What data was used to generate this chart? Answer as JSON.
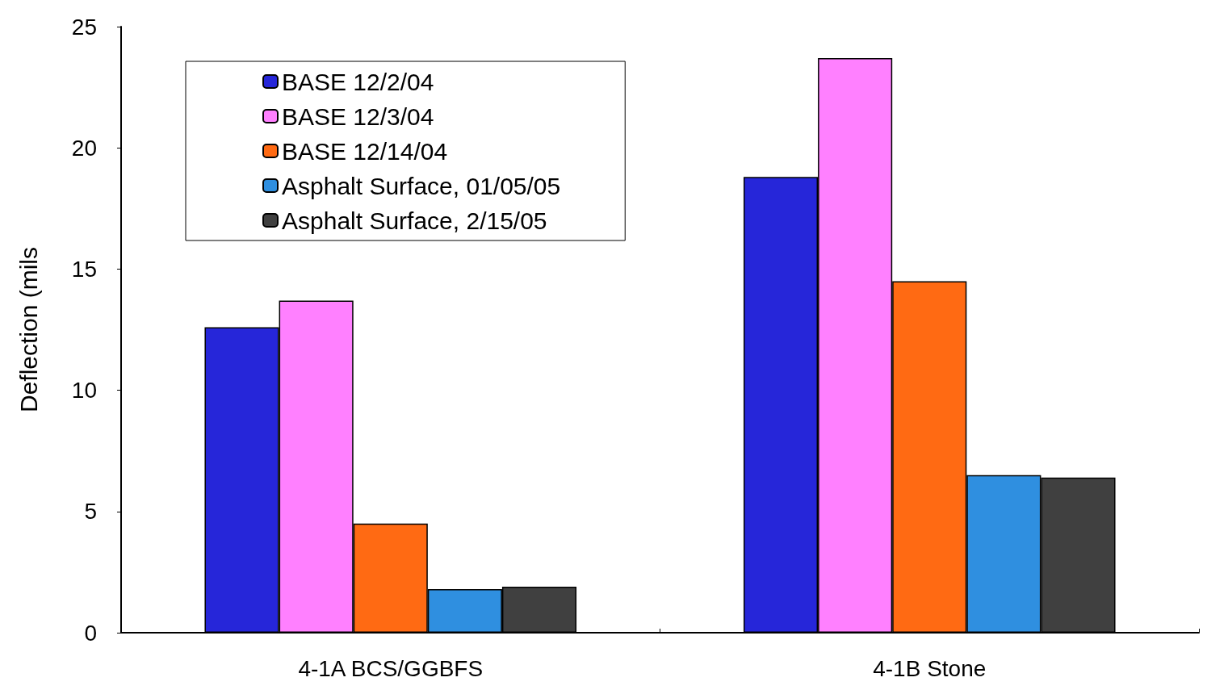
{
  "chart_data": {
    "type": "bar",
    "ylabel": "Deflection (mils",
    "categories": [
      "4-1A BCS/GGBFS",
      "4-1B Stone"
    ],
    "series": [
      {
        "name": "BASE 12/2/04",
        "color": "#2626d9",
        "values": [
          12.6,
          18.8
        ]
      },
      {
        "name": "BASE 12/3/04",
        "color": "#ff80ff",
        "values": [
          13.7,
          23.7
        ]
      },
      {
        "name": "BASE 12/14/04",
        "color": "#ff6a13",
        "values": [
          4.5,
          14.5
        ]
      },
      {
        "name": "Asphalt Surface, 01/05/05",
        "color": "#2f8fe0",
        "values": [
          1.8,
          6.5
        ]
      },
      {
        "name": "Asphalt Surface, 2/15/05",
        "color": "#404040",
        "values": [
          1.9,
          6.4
        ]
      }
    ],
    "ylim": [
      0,
      25
    ],
    "yticks": [
      0,
      5,
      10,
      15,
      20,
      25
    ],
    "grid": false,
    "legend": "top left"
  }
}
